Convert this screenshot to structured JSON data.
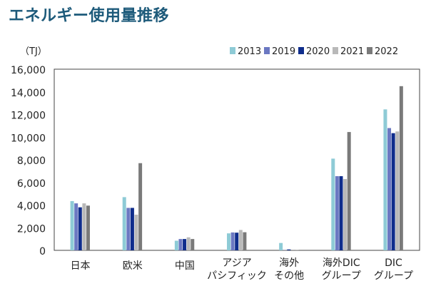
{
  "title": "エネルギー使用量推移",
  "chart_data": {
    "type": "bar",
    "unit": "（TJ）",
    "categories": [
      [
        "日本"
      ],
      [
        "欧米"
      ],
      [
        "中国"
      ],
      [
        "アジア",
        "パシフィック"
      ],
      [
        "海外",
        "その他"
      ],
      [
        "海外DIC",
        "グループ"
      ],
      [
        "DIC",
        "グループ"
      ]
    ],
    "series": [
      {
        "name": "2013",
        "color": "#8ecbd6",
        "values": [
          4350,
          4700,
          850,
          1500,
          650,
          8100,
          12450
        ]
      },
      {
        "name": "2019",
        "color": "#6b78c2",
        "values": [
          4150,
          3750,
          1000,
          1580,
          20,
          6550,
          10800
        ]
      },
      {
        "name": "2020",
        "color": "#0f2d8c",
        "values": [
          3800,
          3750,
          1000,
          1560,
          80,
          6550,
          10350
        ]
      },
      {
        "name": "2021",
        "color": "#b9b9b9",
        "values": [
          4150,
          3150,
          1150,
          1800,
          10,
          6300,
          10500
        ]
      },
      {
        "name": "2022",
        "color": "#7a7a7a",
        "values": [
          3950,
          7700,
          1000,
          1600,
          30,
          10450,
          14500
        ]
      }
    ],
    "yticks": [
      "0",
      "2,000",
      "4,000",
      "6,000",
      "8,000",
      "10,000",
      "12,000",
      "14,000",
      "16,000"
    ],
    "ylim": [
      0,
      16000
    ],
    "legend_position": "top-right",
    "grid": false
  }
}
